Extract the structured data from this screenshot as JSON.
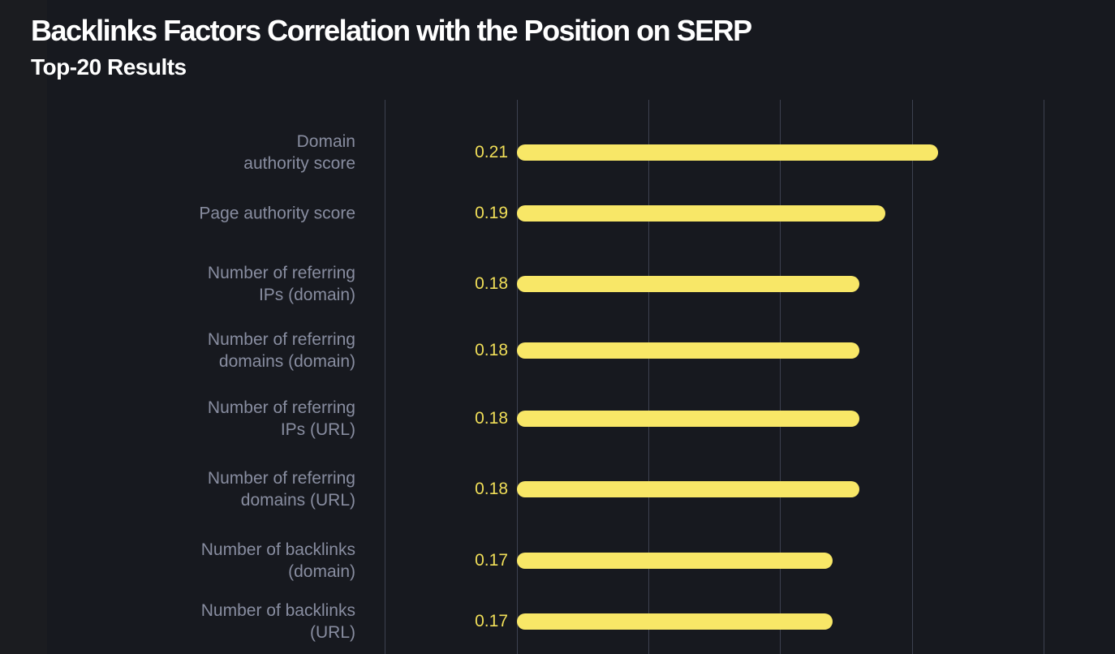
{
  "page": {
    "background_color": "#1B1C20",
    "plot_background_color": "#17191F"
  },
  "chart_data": {
    "type": "bar",
    "orientation": "horizontal",
    "title": "Backlinks Factors Correlation with the Position on SERP",
    "subtitle": "Top-20 Results",
    "categories": [
      "Domain authority score",
      "Page authority score",
      "Number of referring IPs (domain)",
      "Number of referring domains (domain)",
      "Number of referring IPs (URL)",
      "Number of referring domains (URL)",
      "Number of backlinks (domain)",
      "Number of backlinks (URL)"
    ],
    "category_label_lines": [
      [
        "Domain",
        "authority score"
      ],
      [
        "Page authority score"
      ],
      [
        "Number of referring",
        "IPs (domain)"
      ],
      [
        "Number of referring",
        "domains (domain)"
      ],
      [
        "Number of referring",
        "IPs (URL)"
      ],
      [
        "Number of referring",
        "domains (URL)"
      ],
      [
        "Number of backlinks",
        "(domain)"
      ],
      [
        "Number of backlinks",
        "(URL)"
      ]
    ],
    "values": [
      0.21,
      0.19,
      0.18,
      0.18,
      0.18,
      0.18,
      0.17,
      0.17
    ],
    "value_labels": [
      "0.21",
      "0.19",
      "0.18",
      "0.18",
      "0.18",
      "0.18",
      "0.17",
      "0.17"
    ],
    "xlabel": "",
    "ylabel": "",
    "axis": {
      "xmin": 0,
      "xmax": 0.277,
      "gridline_values": [
        0,
        0.05,
        0.1,
        0.15,
        0.2,
        0.25
      ],
      "bars_start_at_value": 0.05,
      "tick_labels_visible": false,
      "grid": true
    },
    "legend": "none",
    "colors": {
      "bar": "#F8E767",
      "value_label": "#F1DF58",
      "category_label": "#888DA0",
      "gridline": "#3D4150",
      "title": "#FFFFFF",
      "subtitle": "#FFFFFF"
    }
  }
}
